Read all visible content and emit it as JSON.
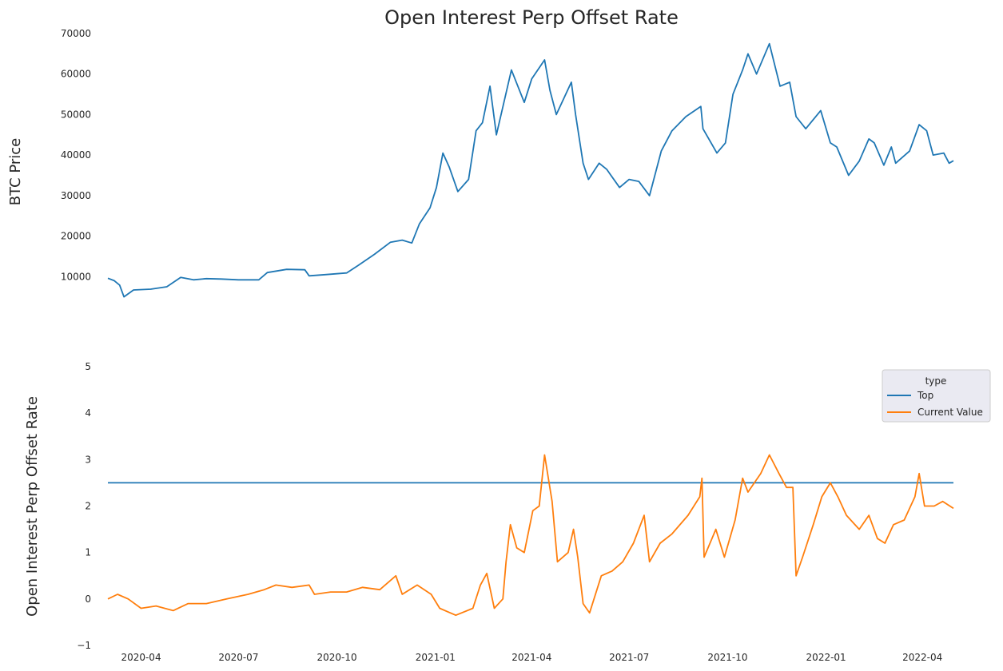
{
  "colors": {
    "top": "#1f77b4",
    "current_value": "#ff7f0e",
    "legend_bg": "#eaeaf2"
  },
  "chart_data": [
    {
      "type": "line",
      "title": "Open Interest Perp Offset Rate",
      "ylabel": "BTC  Price",
      "ylim": [
        0,
        70000
      ],
      "yticks": [
        "10000",
        "20000",
        "30000",
        "40000",
        "50000",
        "60000",
        "70000"
      ],
      "grid": false,
      "x_range": [
        "2020-03-01",
        "2022-04-30"
      ],
      "series": [
        {
          "color": "#1f77b4",
          "points": [
            [
              "2020-03-01",
              9600
            ],
            [
              "2020-03-07",
              9000
            ],
            [
              "2020-03-12",
              7900
            ],
            [
              "2020-03-16",
              5000
            ],
            [
              "2020-03-25",
              6700
            ],
            [
              "2020-04-10",
              6900
            ],
            [
              "2020-04-25",
              7500
            ],
            [
              "2020-05-08",
              9800
            ],
            [
              "2020-05-20",
              9200
            ],
            [
              "2020-06-01",
              9500
            ],
            [
              "2020-06-15",
              9400
            ],
            [
              "2020-07-01",
              9200
            ],
            [
              "2020-07-20",
              9200
            ],
            [
              "2020-07-28",
              11000
            ],
            [
              "2020-08-15",
              11800
            ],
            [
              "2020-09-01",
              11700
            ],
            [
              "2020-09-05",
              10200
            ],
            [
              "2020-09-20",
              10500
            ],
            [
              "2020-10-10",
              10900
            ],
            [
              "2020-10-21",
              12800
            ],
            [
              "2020-11-05",
              15500
            ],
            [
              "2020-11-20",
              18500
            ],
            [
              "2020-12-01",
              19000
            ],
            [
              "2020-12-10",
              18300
            ],
            [
              "2020-12-17",
              23000
            ],
            [
              "2020-12-27",
              27000
            ],
            [
              "2021-01-02",
              32000
            ],
            [
              "2021-01-08",
              40500
            ],
            [
              "2021-01-14",
              37000
            ],
            [
              "2021-01-22",
              31000
            ],
            [
              "2021-02-01",
              34000
            ],
            [
              "2021-02-08",
              46000
            ],
            [
              "2021-02-14",
              48000
            ],
            [
              "2021-02-21",
              57000
            ],
            [
              "2021-02-27",
              45000
            ],
            [
              "2021-03-13",
              61000
            ],
            [
              "2021-03-25",
              53000
            ],
            [
              "2021-04-01",
              58800
            ],
            [
              "2021-04-13",
              63500
            ],
            [
              "2021-04-18",
              56000
            ],
            [
              "2021-04-24",
              50000
            ],
            [
              "2021-05-08",
              58000
            ],
            [
              "2021-05-12",
              50000
            ],
            [
              "2021-05-19",
              38000
            ],
            [
              "2021-05-24",
              34000
            ],
            [
              "2021-06-03",
              38000
            ],
            [
              "2021-06-10",
              36500
            ],
            [
              "2021-06-22",
              32000
            ],
            [
              "2021-07-01",
              34000
            ],
            [
              "2021-07-10",
              33500
            ],
            [
              "2021-07-20",
              30000
            ],
            [
              "2021-07-31",
              41000
            ],
            [
              "2021-08-10",
              46000
            ],
            [
              "2021-08-23",
              49500
            ],
            [
              "2021-09-06",
              52000
            ],
            [
              "2021-09-08",
              46500
            ],
            [
              "2021-09-21",
              40500
            ],
            [
              "2021-09-29",
              43000
            ],
            [
              "2021-10-06",
              55000
            ],
            [
              "2021-10-15",
              61000
            ],
            [
              "2021-10-20",
              65000
            ],
            [
              "2021-10-28",
              60000
            ],
            [
              "2021-11-09",
              67500
            ],
            [
              "2021-11-19",
              57000
            ],
            [
              "2021-11-28",
              58000
            ],
            [
              "2021-12-04",
              49500
            ],
            [
              "2021-12-13",
              46500
            ],
            [
              "2021-12-27",
              51000
            ],
            [
              "2022-01-05",
              43000
            ],
            [
              "2022-01-11",
              42000
            ],
            [
              "2022-01-22",
              35000
            ],
            [
              "2022-02-01",
              38500
            ],
            [
              "2022-02-10",
              44000
            ],
            [
              "2022-02-15",
              43000
            ],
            [
              "2022-02-24",
              37500
            ],
            [
              "2022-03-03",
              42000
            ],
            [
              "2022-03-07",
              38000
            ],
            [
              "2022-03-20",
              41000
            ],
            [
              "2022-03-29",
              47500
            ],
            [
              "2022-04-05",
              46000
            ],
            [
              "2022-04-11",
              40000
            ],
            [
              "2022-04-21",
              40500
            ],
            [
              "2022-04-26",
              38000
            ],
            [
              "2022-04-30",
              38600
            ]
          ]
        }
      ]
    },
    {
      "type": "line",
      "ylabel": "Open Interest Perp Offset Rate",
      "ylim": [
        -1,
        5
      ],
      "yticks": [
        "−1",
        "0",
        "1",
        "2",
        "3",
        "4",
        "5"
      ],
      "xticks": [
        {
          "label": "2020-04",
          "date": "2020-04-01"
        },
        {
          "label": "2020-07",
          "date": "2020-07-01"
        },
        {
          "label": "2020-10",
          "date": "2020-10-01"
        },
        {
          "label": "2021-01",
          "date": "2021-01-01"
        },
        {
          "label": "2021-04",
          "date": "2021-04-01"
        },
        {
          "label": "2021-07",
          "date": "2021-07-01"
        },
        {
          "label": "2021-10",
          "date": "2021-10-01"
        },
        {
          "label": "2022-01",
          "date": "2022-01-01"
        },
        {
          "label": "2022-04",
          "date": "2022-04-01"
        }
      ],
      "grid": false,
      "legend": {
        "title": "type",
        "placement": "right",
        "entries": [
          "Top",
          "Current Value"
        ]
      },
      "x_range": [
        "2020-03-01",
        "2022-04-30"
      ],
      "series": [
        {
          "name": "Top",
          "color": "#1f77b4",
          "points": [
            [
              "2020-03-01",
              2.5
            ],
            [
              "2022-04-30",
              2.5
            ]
          ]
        },
        {
          "name": "Current Value",
          "color": "#ff7f0e",
          "points": [
            [
              "2020-03-01",
              0.0
            ],
            [
              "2020-03-10",
              0.1
            ],
            [
              "2020-03-20",
              0.0
            ],
            [
              "2020-04-01",
              -0.2
            ],
            [
              "2020-04-15",
              -0.15
            ],
            [
              "2020-05-01",
              -0.25
            ],
            [
              "2020-05-15",
              -0.1
            ],
            [
              "2020-06-01",
              -0.1
            ],
            [
              "2020-06-20",
              0.0
            ],
            [
              "2020-07-10",
              0.1
            ],
            [
              "2020-07-25",
              0.2
            ],
            [
              "2020-08-05",
              0.3
            ],
            [
              "2020-08-20",
              0.25
            ],
            [
              "2020-09-05",
              0.3
            ],
            [
              "2020-09-10",
              0.1
            ],
            [
              "2020-09-25",
              0.15
            ],
            [
              "2020-10-10",
              0.15
            ],
            [
              "2020-10-25",
              0.25
            ],
            [
              "2020-11-10",
              0.2
            ],
            [
              "2020-11-25",
              0.5
            ],
            [
              "2020-12-01",
              0.1
            ],
            [
              "2020-12-15",
              0.3
            ],
            [
              "2020-12-28",
              0.1
            ],
            [
              "2021-01-05",
              -0.2
            ],
            [
              "2021-01-20",
              -0.35
            ],
            [
              "2021-02-05",
              -0.2
            ],
            [
              "2021-02-12",
              0.3
            ],
            [
              "2021-02-18",
              0.55
            ],
            [
              "2021-02-25",
              -0.2
            ],
            [
              "2021-03-05",
              0.0
            ],
            [
              "2021-03-08",
              0.8
            ],
            [
              "2021-03-12",
              1.6
            ],
            [
              "2021-03-18",
              1.1
            ],
            [
              "2021-03-25",
              1.0
            ],
            [
              "2021-04-02",
              1.9
            ],
            [
              "2021-04-08",
              2.0
            ],
            [
              "2021-04-13",
              3.1
            ],
            [
              "2021-04-20",
              2.1
            ],
            [
              "2021-04-25",
              0.8
            ],
            [
              "2021-05-05",
              1.0
            ],
            [
              "2021-05-10",
              1.5
            ],
            [
              "2021-05-14",
              0.9
            ],
            [
              "2021-05-19",
              -0.1
            ],
            [
              "2021-05-25",
              -0.3
            ],
            [
              "2021-06-05",
              0.5
            ],
            [
              "2021-06-15",
              0.6
            ],
            [
              "2021-06-25",
              0.8
            ],
            [
              "2021-07-05",
              1.2
            ],
            [
              "2021-07-15",
              1.8
            ],
            [
              "2021-07-20",
              0.8
            ],
            [
              "2021-07-30",
              1.2
            ],
            [
              "2021-08-10",
              1.4
            ],
            [
              "2021-08-25",
              1.8
            ],
            [
              "2021-09-05",
              2.2
            ],
            [
              "2021-09-07",
              2.6
            ],
            [
              "2021-09-09",
              0.9
            ],
            [
              "2021-09-20",
              1.5
            ],
            [
              "2021-09-28",
              0.9
            ],
            [
              "2021-10-08",
              1.7
            ],
            [
              "2021-10-15",
              2.6
            ],
            [
              "2021-10-20",
              2.3
            ],
            [
              "2021-11-01",
              2.7
            ],
            [
              "2021-11-09",
              3.1
            ],
            [
              "2021-11-18",
              2.7
            ],
            [
              "2021-11-25",
              2.4
            ],
            [
              "2021-12-01",
              2.4
            ],
            [
              "2021-12-04",
              0.5
            ],
            [
              "2021-12-10",
              0.9
            ],
            [
              "2021-12-20",
              1.6
            ],
            [
              "2021-12-28",
              2.2
            ],
            [
              "2022-01-05",
              2.5
            ],
            [
              "2022-01-12",
              2.2
            ],
            [
              "2022-01-20",
              1.8
            ],
            [
              "2022-02-01",
              1.5
            ],
            [
              "2022-02-10",
              1.8
            ],
            [
              "2022-02-18",
              1.3
            ],
            [
              "2022-02-25",
              1.2
            ],
            [
              "2022-03-05",
              1.6
            ],
            [
              "2022-03-15",
              1.7
            ],
            [
              "2022-03-25",
              2.2
            ],
            [
              "2022-03-29",
              2.7
            ],
            [
              "2022-04-03",
              2.0
            ],
            [
              "2022-04-12",
              2.0
            ],
            [
              "2022-04-20",
              2.1
            ],
            [
              "2022-04-30",
              1.95
            ]
          ]
        }
      ]
    }
  ]
}
